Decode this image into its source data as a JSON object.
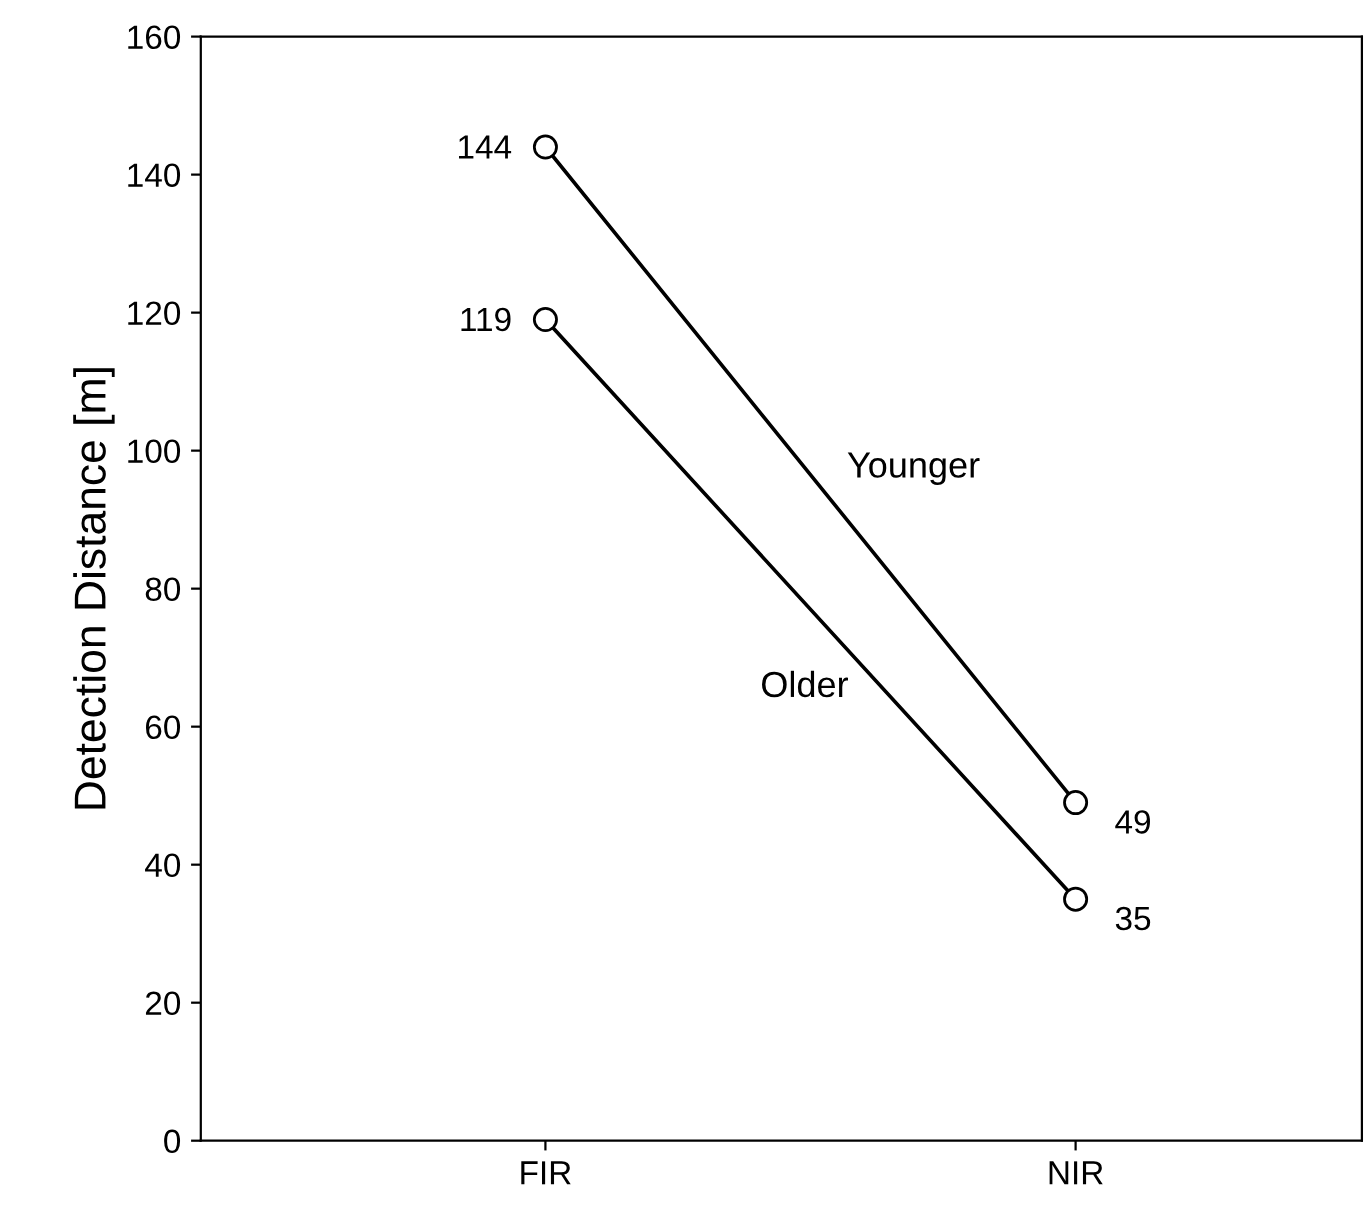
{
  "chart_data": {
    "type": "line",
    "ylabel": "Detection Distance [m]",
    "categories": [
      "FIR",
      "NIR"
    ],
    "series": [
      {
        "name": "Younger",
        "color": "#000000",
        "values": [
          144,
          49
        ]
      },
      {
        "name": "Older",
        "color": "#000000",
        "values": [
          119,
          35
        ]
      }
    ],
    "ylim": [
      0,
      160
    ],
    "yticks": [
      0,
      20,
      40,
      60,
      80,
      100,
      120,
      140,
      160
    ],
    "data_labels": true,
    "marker": "circle",
    "line_style": "solid",
    "grid": false,
    "legend": false
  }
}
